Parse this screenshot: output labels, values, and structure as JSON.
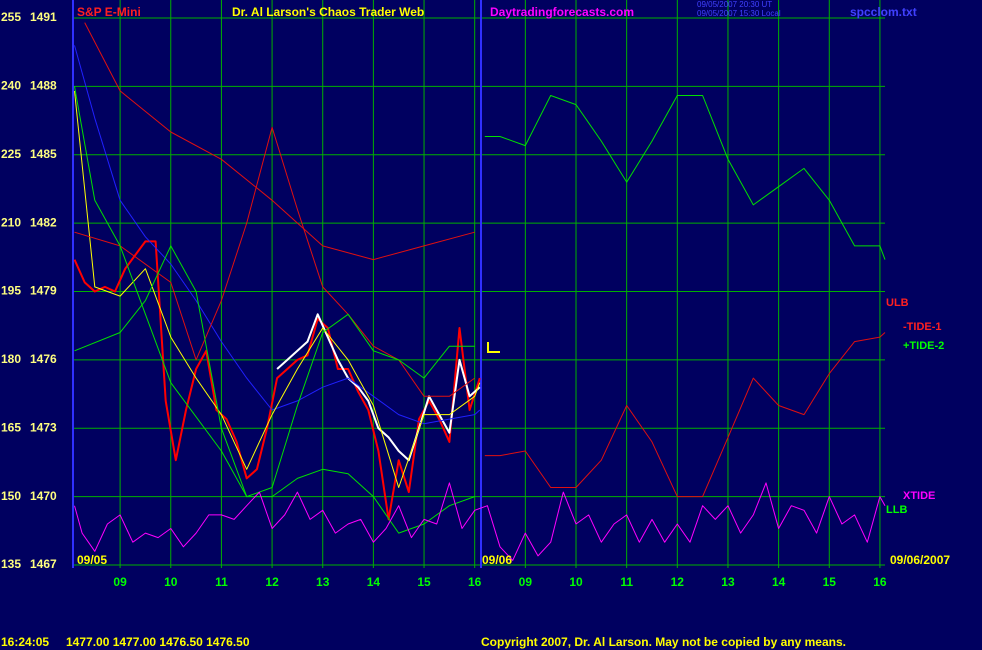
{
  "chart_data": {
    "type": "line",
    "symbol": "S&P E-Mini",
    "title": "Dr. Al Larson's Chaos Trader Web",
    "site": "Daytradingforecasts.com",
    "timestamps": [
      "09/05/2007 20:30 UT",
      "09/05/2007 15:30 Local"
    ],
    "file": "spcclom.txt",
    "date_labels": [
      "09/05",
      "09/06",
      "09/06/2007"
    ],
    "footer": {
      "time": "16:24:05",
      "quote": "1477.00 1477.00 1476.50 1476.50",
      "copyright": "Copyright 2007, Dr. Al Larson. May not be copied by any means."
    },
    "xlim": [
      8.07,
      24.1
    ],
    "xticks": [
      {
        "value": 9,
        "label": "09"
      },
      10,
      11,
      12,
      13,
      14,
      15,
      16,
      {
        "value": 17,
        "label": "09"
      },
      {
        "value": 18,
        "label": "10"
      },
      {
        "value": 19,
        "label": "11"
      },
      {
        "value": 20,
        "label": "12"
      },
      {
        "value": 21,
        "label": "13"
      },
      {
        "value": 22,
        "label": "14"
      },
      {
        "value": 23,
        "label": "15"
      },
      {
        "value": 24,
        "label": "16"
      }
    ],
    "ylim": [
      135,
      255
    ],
    "yticks": [
      135,
      150,
      165,
      180,
      195,
      210,
      225,
      240,
      255
    ],
    "y2lim": [
      1467,
      1491
    ],
    "y2ticks": [
      1467,
      1470,
      1473,
      1476,
      1479,
      1482,
      1485,
      1488,
      1491
    ],
    "grid": true,
    "grid_color": "#00b000",
    "line_labels": [
      {
        "text": "ULB",
        "color": "#ff2020"
      },
      {
        "text": "-TIDE-1",
        "color": "#ff2020"
      },
      {
        "text": "+TIDE-2",
        "color": "#00ff00"
      },
      {
        "text": "XTIDE",
        "color": "#ff00ff"
      },
      {
        "text": "LLB",
        "color": "#00ff00"
      }
    ],
    "series": [
      {
        "color": "#ff0000",
        "width": 2,
        "x": [
          8.1,
          8.3,
          8.5,
          8.7,
          8.9,
          9.1,
          9.3,
          9.5,
          9.7,
          9.9,
          10.1,
          10.3,
          10.5,
          10.7,
          10.9,
          11.1,
          11.3,
          11.5,
          11.7,
          11.9,
          12.1,
          12.3,
          12.5,
          12.7,
          12.9,
          13.1,
          13.3,
          13.5,
          13.7,
          13.9,
          14.1,
          14.3,
          14.5,
          14.7,
          14.9,
          15.1,
          15.3,
          15.5,
          15.7,
          15.9,
          16.1
        ],
        "values": [
          202,
          197,
          195,
          196,
          195,
          200,
          203,
          206,
          206,
          171,
          158,
          169,
          178,
          182,
          169,
          167,
          162,
          154,
          156,
          165,
          176,
          178,
          180,
          181,
          189,
          187,
          178,
          178,
          173,
          169,
          160,
          145,
          158,
          151,
          167,
          171,
          167,
          162,
          187,
          169,
          176
        ]
      },
      {
        "color": "#ffffff",
        "width": 2,
        "x": [
          12.1,
          12.3,
          12.5,
          12.7,
          12.9,
          13.1,
          13.3,
          13.5,
          13.7,
          13.9,
          14.1,
          14.3,
          14.5,
          14.7,
          14.9,
          15.1,
          15.3,
          15.5,
          15.7,
          15.9,
          16.1
        ],
        "values": [
          178,
          180,
          182,
          184,
          190,
          185,
          180,
          176,
          174,
          171,
          165,
          163,
          160,
          158,
          165,
          172,
          168,
          164,
          180,
          172,
          174
        ]
      },
      {
        "color": "#2020ff",
        "width": 1,
        "x": [
          8.1,
          8.5,
          9,
          9.5,
          10,
          10.5,
          11,
          11.5,
          12,
          12.5,
          13,
          13.5,
          14,
          14.5,
          15,
          15.5,
          16,
          16.1
        ],
        "values": [
          249,
          233,
          215,
          207,
          201,
          193,
          184,
          176,
          169,
          171,
          174,
          176,
          172,
          168,
          166,
          167,
          168,
          169
        ]
      },
      {
        "color": "#ffff00",
        "width": 1,
        "x": [
          8.1,
          8.5,
          9,
          9.5,
          10,
          10.5,
          11,
          11.5,
          12,
          12.5,
          13,
          13.5,
          14,
          14.5,
          15,
          15.5,
          16,
          16.1
        ],
        "values": [
          239,
          196,
          194,
          200,
          185,
          176,
          168,
          156,
          168,
          178,
          187,
          180,
          170,
          152,
          168,
          168,
          172,
          175
        ]
      },
      {
        "color": "#e01010",
        "width": 1,
        "x": [
          8.3,
          9,
          10,
          11,
          12,
          13,
          14,
          15,
          16
        ],
        "values": [
          254,
          239,
          230,
          224,
          215,
          205,
          202,
          205,
          208
        ]
      },
      {
        "color": "#e01010",
        "width": 1,
        "x": [
          8.1,
          9,
          10,
          10.5,
          11,
          11.5,
          12,
          12.5,
          13,
          13.5,
          14,
          14.5,
          15,
          15.5,
          16
        ],
        "values": [
          208,
          205,
          197,
          180,
          193,
          210,
          231,
          213,
          196,
          190,
          183,
          180,
          172,
          172,
          176
        ]
      },
      {
        "color": "#00e000",
        "width": 1,
        "x": [
          8.1,
          9,
          9.5,
          10,
          10.5,
          11,
          11.5,
          12,
          12.5,
          13,
          13.5,
          14,
          14.5,
          15,
          15.5,
          16
        ],
        "values": [
          182,
          186,
          193,
          205,
          195,
          165,
          150,
          152,
          170,
          186,
          190,
          182,
          180,
          176,
          183,
          183
        ]
      },
      {
        "color": "#00e000",
        "width": 1,
        "x": [
          8.1,
          8.5,
          9,
          10,
          11,
          11.5,
          12,
          12.5,
          13,
          13.5,
          14,
          14.5,
          15,
          15.5,
          16
        ],
        "values": [
          240,
          215,
          205,
          175,
          160,
          150,
          150,
          154,
          156,
          155,
          150,
          142,
          144,
          148,
          150
        ]
      },
      {
        "color": "#00e000",
        "width": 1,
        "x": [
          16.2,
          16.5,
          17,
          17.5,
          18,
          18.5,
          19,
          19.5,
          20,
          20.5,
          21,
          21.5,
          22,
          22.5,
          23,
          23.5,
          24,
          24.1
        ],
        "values": [
          229,
          229,
          227,
          238,
          236,
          228,
          219,
          228,
          238,
          238,
          224,
          214,
          218,
          222,
          215,
          205,
          205,
          202
        ]
      },
      {
        "color": "#e01010",
        "width": 1,
        "x": [
          16.2,
          16.5,
          17,
          17.5,
          18,
          18.5,
          19,
          19.5,
          20,
          20.5,
          21,
          21.5,
          22,
          22.5,
          23,
          23.5,
          24,
          24.1
        ],
        "values": [
          159,
          159,
          160,
          152,
          152,
          158,
          170,
          162,
          150,
          150,
          163,
          176,
          170,
          168,
          177,
          184,
          185,
          186
        ]
      },
      {
        "color": "#ff00ff",
        "width": 1,
        "x": [
          8.1,
          8.25,
          8.5,
          8.75,
          9,
          9.25,
          9.5,
          9.75,
          10,
          10.25,
          10.5,
          10.75,
          11,
          11.25,
          11.5,
          11.75,
          12,
          12.25,
          12.5,
          12.75,
          13,
          13.25,
          13.5,
          13.75,
          14,
          14.25,
          14.5,
          14.75,
          15,
          15.25,
          15.5,
          15.75,
          16,
          16.25,
          16.5,
          16.75,
          17,
          17.25,
          17.5,
          17.75,
          18,
          18.25,
          18.5,
          18.75,
          19,
          19.25,
          19.5,
          19.75,
          20,
          20.25,
          20.5,
          20.75,
          21,
          21.25,
          21.5,
          21.75,
          22,
          22.25,
          22.5,
          22.75,
          23,
          23.25,
          23.5,
          23.75,
          24,
          24.1
        ],
        "values": [
          148,
          142,
          138,
          144,
          146,
          140,
          142,
          141,
          143,
          139,
          142,
          146,
          146,
          145,
          148,
          151,
          143,
          146,
          151,
          145,
          147,
          142,
          144,
          145,
          140,
          143,
          148,
          141,
          145,
          144,
          153,
          143,
          147,
          148,
          139,
          136,
          142,
          137,
          140,
          151,
          144,
          146,
          140,
          144,
          146,
          140,
          145,
          140,
          144,
          140,
          148,
          145,
          148,
          142,
          146,
          153,
          143,
          148,
          147,
          142,
          150,
          144,
          146,
          140,
          150,
          148
        ]
      }
    ]
  }
}
